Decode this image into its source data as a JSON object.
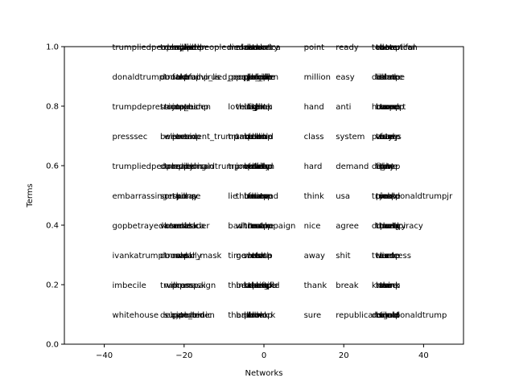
{
  "chart_data": {
    "type": "scatter",
    "title": "",
    "xlabel": "Networks",
    "ylabel": "Terms",
    "xlim": [
      -50,
      50
    ],
    "ylim": [
      0.0,
      1.0
    ],
    "xticks": [
      -40,
      -20,
      0,
      20,
      40
    ],
    "xtick_labels": [
      "−40",
      "−20",
      "0",
      "20",
      "40"
    ],
    "yticks": [
      0.0,
      0.2,
      0.4,
      0.6,
      0.8,
      1.0
    ],
    "ytick_labels": [
      "0.0",
      "0.2",
      "0.4",
      "0.6",
      "0.8",
      "1.0"
    ],
    "grid": false,
    "series": [
      {
        "x": -38,
        "terms": [
          "whitehouse",
          "imbecile",
          "ivankatrump",
          "gopbetrayedamerica",
          "embarrassing",
          "trumpliedpeopledied",
          "presssec",
          "trumpdepression",
          "donaldtrump",
          "trumpliedpeopledied"
        ]
      },
      {
        "x": -26,
        "terms": [
          "debate",
          "trump",
          "donald",
          "vote",
          "sorry",
          "dump",
          "believe",
          "trump",
          "donald",
          "trumpliedpeopledied"
        ]
      },
      {
        "x": -25,
        "terms": [
          "supporter",
          "will",
          "trump",
          "kendal",
          "response",
          "trump",
          "wear",
          "trump",
          "trumpfail",
          "deny"
        ]
      },
      {
        "x": -23,
        "terms": [
          "pandemic",
          "press",
          "mask",
          "america",
          "trump",
          "realdonaldtrump",
          "president_trump",
          "joe_biden",
          "fake",
          "covid"
        ]
      },
      {
        "x": -22,
        "terms": [
          "joe_biden",
          "campaign",
          "wear_mask",
          "mask",
          "kill",
          "american",
          "trump",
          "taxes",
          "trumpvirus",
          "ripped"
        ]
      },
      {
        "x": -20,
        "terms": [
          "hand",
          "mask",
          "rally",
          "leader",
          "say",
          "dying",
          "tax",
          "trump",
          "trump_lied_people_die",
          "biden"
        ]
      },
      {
        "x": -9,
        "terms": [
          "thank",
          "think",
          "time",
          "bad",
          "lie",
          "trumprally",
          "trump",
          "love",
          "people_die",
          "make"
        ]
      },
      {
        "x": -7,
        "terms": [
          "bad",
          "beautiful",
          "go",
          "white",
          "think",
          "joe",
          "take",
          "thing",
          "pay",
          "make"
        ]
      },
      {
        "x": -4,
        "terms": [
          "look",
          "thing",
          "lot",
          "real",
          "fact",
          "white",
          "tell",
          "fight",
          "people",
          "country"
        ]
      },
      {
        "x": -5,
        "terms": [
          "plan",
          "take",
          "mask",
          "trump",
          "believe",
          "vote",
          "biden",
          "lose",
          "die",
          "do"
        ]
      },
      {
        "x": -5,
        "terms": [
          "hell",
          "beautiful",
          "wear",
          "trust",
          "trump",
          "biden",
          "ban",
          "day",
          "people",
          "care"
        ]
      },
      {
        "x": -4,
        "terms": [
          "trump",
          "trump",
          "trump",
          "trump",
          "trump",
          "trump",
          "trump",
          "trump",
          "trump",
          "america"
        ]
      },
      {
        "x": -3,
        "terms": [
          "look",
          "people",
          "truth",
          "make",
          "care",
          "biden",
          "bribe",
          "think",
          "die",
          "take"
        ]
      },
      {
        "x": -2,
        "terms": [
          "work",
          "hope",
          "lose",
          "campaign",
          "stand",
          "lead",
          "hold",
          "like",
          "biden",
          "hurt"
        ]
      },
      {
        "x": 10,
        "terms": [
          "sure",
          "thank",
          "away",
          "nice",
          "think",
          "hard",
          "class",
          "hand",
          "million",
          "point"
        ]
      },
      {
        "x": 18,
        "terms": [
          "republicans",
          "break",
          "shit",
          "agree",
          "usa",
          "demand",
          "system",
          "anti",
          "easy",
          "ready"
        ]
      },
      {
        "x": 27,
        "terms": [
          "donald",
          "know",
          "tweet",
          "donald",
          "trump",
          "debt",
          "party",
          "hoax",
          "debate",
          "tell"
        ]
      },
      {
        "x": 28,
        "terms": [
          "trump",
          "trump",
          "trump",
          "trump",
          "trump",
          "trump",
          "trump",
          "trump",
          "trump",
          "trump"
        ]
      },
      {
        "x": 28,
        "terms": [
          "big",
          "lose",
          "tax",
          "thank",
          "pick",
          "fight",
          "vote",
          "bored",
          "lie",
          "vote"
        ]
      },
      {
        "x": 29,
        "terms": [
          "time",
          "think",
          "code",
          "conspiracy",
          "wake",
          "pay",
          "easy",
          "trump",
          "sure",
          "vote"
        ]
      },
      {
        "x": 29,
        "terms": [
          "elect",
          "sure",
          "lie",
          "party",
          "joe",
          "tax",
          "taxes",
          "expert",
          "shake",
          "american"
        ]
      },
      {
        "x": 29,
        "terms": [
          "realdonaldtrump",
          "think",
          "success",
          "theory",
          "realdonaldtrumpjr",
          "time",
          "feel",
          "taxes",
          "blame",
          "beautiful"
        ]
      }
    ]
  }
}
